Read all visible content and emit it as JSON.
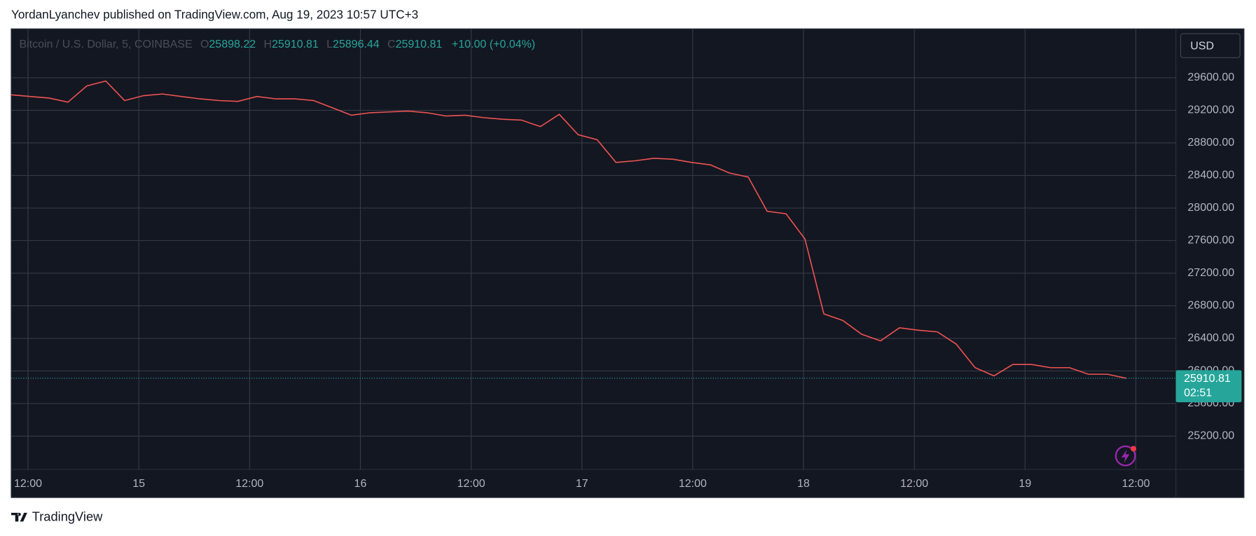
{
  "chart_data": {
    "type": "line",
    "header": "YordanLyanchev published on TradingView.com, Aug 19, 2023 10:57 UTC+3",
    "symbol": "Bitcoin / U.S. Dollar, 5, COINBASE",
    "ohlc": [
      {
        "label": "O",
        "value": 25898.22
      },
      {
        "label": "H",
        "value": 25910.81
      },
      {
        "label": "L",
        "value": 25896.44
      },
      {
        "label": "C",
        "value": 25910.81
      }
    ],
    "change": "+10.00 (+0.04%)",
    "currency": "USD",
    "last_price": 25910.81,
    "countdown": "02:51",
    "brand": "TradingView",
    "color": "#ef5350",
    "grid": true,
    "ylim": [
      24790,
      30200
    ],
    "yticks": [
      {
        "value": 25200,
        "label": "25200.00"
      },
      {
        "value": 25600,
        "label": "25600.00"
      },
      {
        "value": 26000,
        "label": "26000.00"
      },
      {
        "value": 26400,
        "label": "26400.00"
      },
      {
        "value": 26800,
        "label": "26800.00"
      },
      {
        "value": 27200,
        "label": "27200.00"
      },
      {
        "value": 27600,
        "label": "27600.00"
      },
      {
        "value": 28000,
        "label": "28000.00"
      },
      {
        "value": 28400,
        "label": "28400.00"
      },
      {
        "value": 28800,
        "label": "28800.00"
      },
      {
        "value": 29200,
        "label": "29200.00"
      },
      {
        "value": 29600,
        "label": "29600.00"
      }
    ],
    "xtick_labels": [
      "12:00",
      "15",
      "12:00",
      "16",
      "12:00",
      "17",
      "12:00",
      "18",
      "12:00",
      "19",
      "12:00"
    ],
    "values": [
      29390,
      29370,
      29350,
      29300,
      29500,
      29560,
      29320,
      29380,
      29400,
      29370,
      29340,
      29320,
      29310,
      29370,
      29340,
      29340,
      29320,
      29230,
      29140,
      29170,
      29180,
      29190,
      29170,
      29130,
      29140,
      29110,
      29090,
      29080,
      29000,
      29150,
      28900,
      28840,
      28560,
      28580,
      28610,
      28600,
      28560,
      28530,
      28430,
      28380,
      27960,
      27930,
      27620,
      26700,
      26620,
      26450,
      26370,
      26530,
      26500,
      26480,
      26330,
      26040,
      25940,
      26080,
      26080,
      26040,
      26040,
      25960,
      25960,
      25910
    ]
  }
}
